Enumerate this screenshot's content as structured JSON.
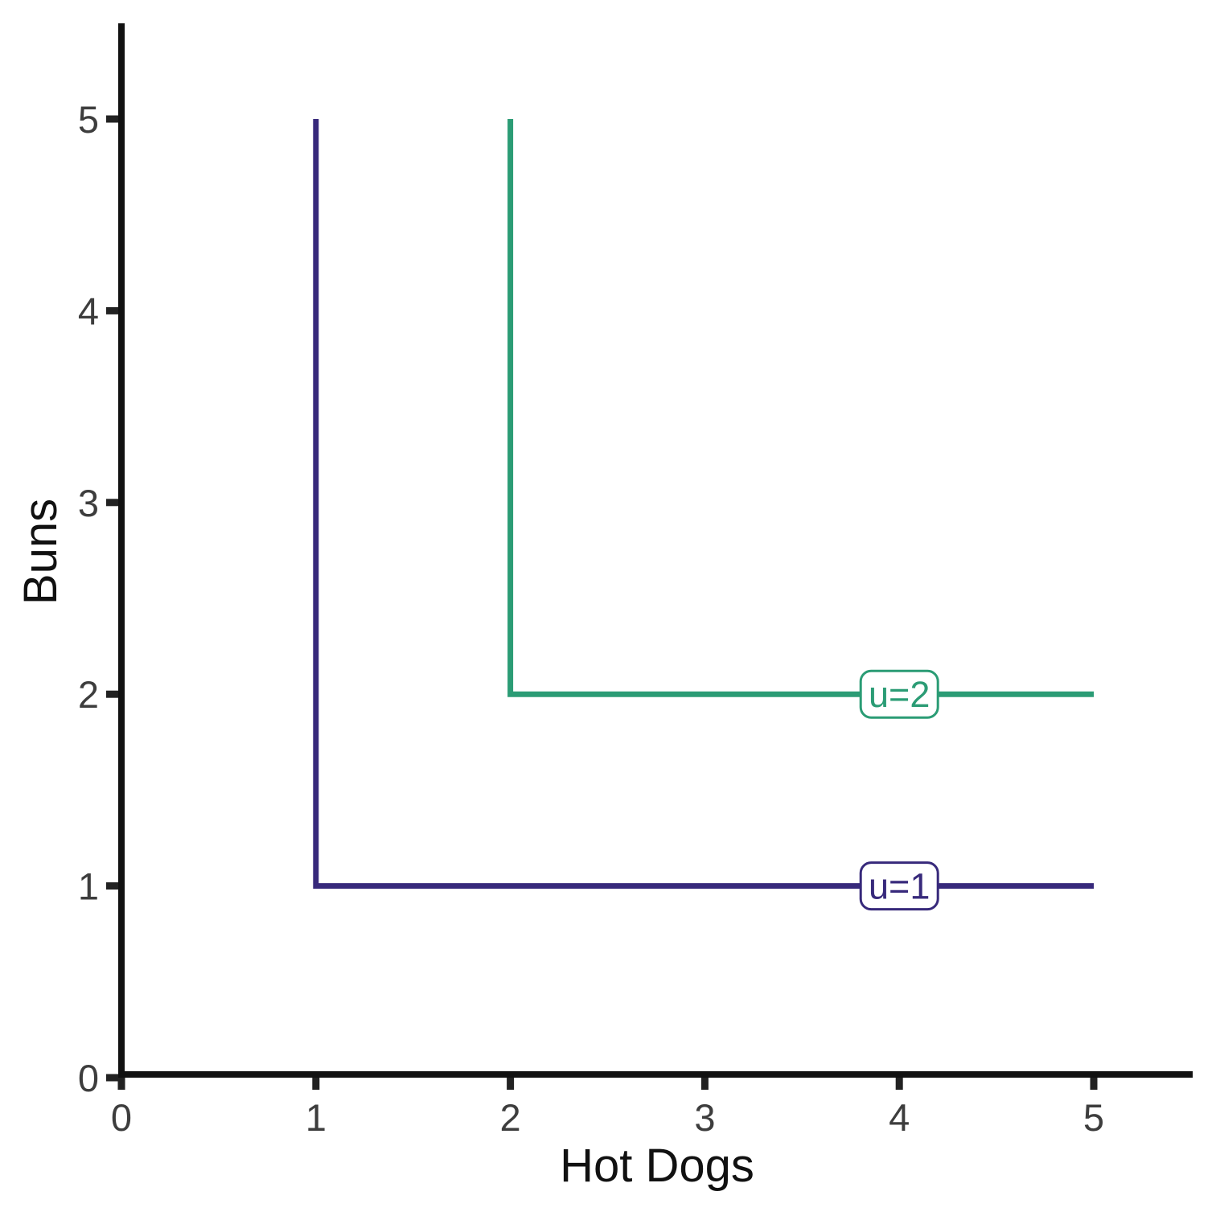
{
  "chart_data": {
    "type": "line",
    "title": "",
    "xlabel": "Hot Dogs",
    "ylabel": "Buns",
    "xlim": [
      0,
      5
    ],
    "ylim": [
      0,
      5
    ],
    "xticks": [
      0,
      1,
      2,
      3,
      4,
      5
    ],
    "yticks": [
      0,
      1,
      2,
      3,
      4,
      5
    ],
    "grid": false,
    "legend_position": "inline-labels",
    "series": [
      {
        "name": "u=1",
        "color": "#37297b",
        "points": [
          [
            1,
            5
          ],
          [
            1,
            1
          ],
          [
            5,
            1
          ]
        ],
        "label": {
          "text": "u=1",
          "x": 4,
          "y": 1
        }
      },
      {
        "name": "u=2",
        "color": "#2b9c75",
        "points": [
          [
            2,
            5
          ],
          [
            2,
            2
          ],
          [
            5,
            2
          ]
        ],
        "label": {
          "text": "u=2",
          "x": 4,
          "y": 2
        }
      }
    ]
  },
  "style": {
    "axis_color": "#111111",
    "tick_color": "#222222",
    "tick_label_color": "#3d3d3d",
    "axis_title_color": "#111111",
    "background": "#ffffff",
    "label_box_fill": "#ffffff"
  }
}
